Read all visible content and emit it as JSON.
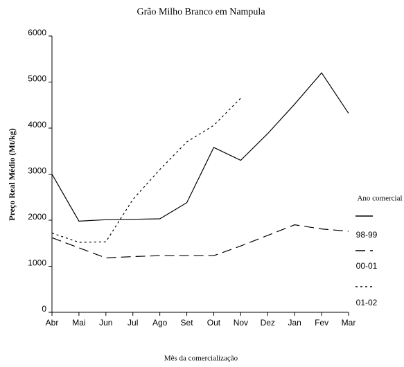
{
  "chart_data": {
    "type": "line",
    "title": "Grão Milho Branco em Nampula",
    "x_label": "Mês da comercialização",
    "y_label": "Preço Real Médio (Mt/kg)",
    "legend_title": "Ano comercial",
    "categories": [
      "Abr",
      "Mai",
      "Jun",
      "Jul",
      "Ago",
      "Set",
      "Out",
      "Nov",
      "Dez",
      "Jan",
      "Fev",
      "Mar"
    ],
    "series": [
      {
        "name": "98-99",
        "color": "#000000",
        "style": "solid",
        "values": [
          3000,
          1980,
          2010,
          2020,
          2030,
          2380,
          3580,
          3300,
          3880,
          4520,
          5200,
          4320
        ]
      },
      {
        "name": "00-01",
        "color": "#000000",
        "style": "dashed",
        "values": [
          1620,
          1400,
          1180,
          1210,
          1230,
          1230,
          1230,
          1440,
          1670,
          1900,
          1810,
          1760
        ]
      },
      {
        "name": "01-02",
        "color": "#000000",
        "style": "dotted",
        "values": [
          1720,
          1520,
          1530,
          2450,
          3100,
          3700,
          4060,
          4650,
          null,
          null,
          null,
          null
        ]
      }
    ],
    "ylim": [
      0,
      6000
    ],
    "yticks": [
      0,
      1000,
      2000,
      3000,
      4000,
      5000,
      6000
    ],
    "grid": false,
    "legend": "right"
  }
}
